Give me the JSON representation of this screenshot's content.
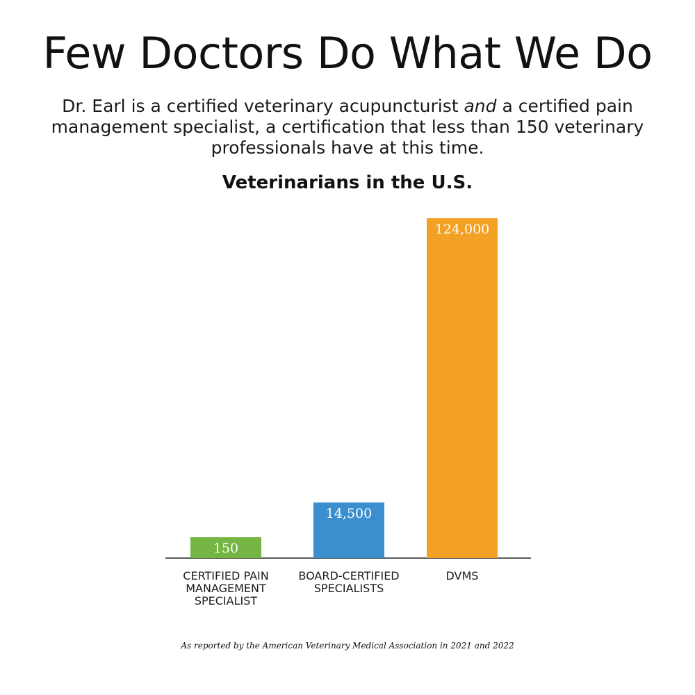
{
  "headline": "Few Doctors Do What We Do",
  "intro": {
    "before_emphasis": "Dr. Earl is a certified veterinary acupuncturist ",
    "emphasis": "and",
    "after_emphasis": " a certified pain management specialist, a certification that less than 150 veterinary professionals have at this time."
  },
  "footnote": "As reported by the American Veterinary Medical Association in 2021 and 2022",
  "chart_data": {
    "type": "bar",
    "title": "Veterinarians in the U.S.",
    "categories": [
      "CERTIFIED PAIN MANAGEMENT SPECIALIST",
      "BOARD-CERTIFIED SPECIALISTS",
      "DVMs"
    ],
    "values": [
      150,
      14500,
      124000
    ],
    "value_labels": [
      "150",
      "14,500",
      "124,000"
    ],
    "colors": [
      "#74b543",
      "#3b8fcf",
      "#f2a124"
    ],
    "ylim": [
      0,
      124000
    ],
    "grid": false,
    "legend": "none",
    "xlabel": "",
    "ylabel": ""
  }
}
